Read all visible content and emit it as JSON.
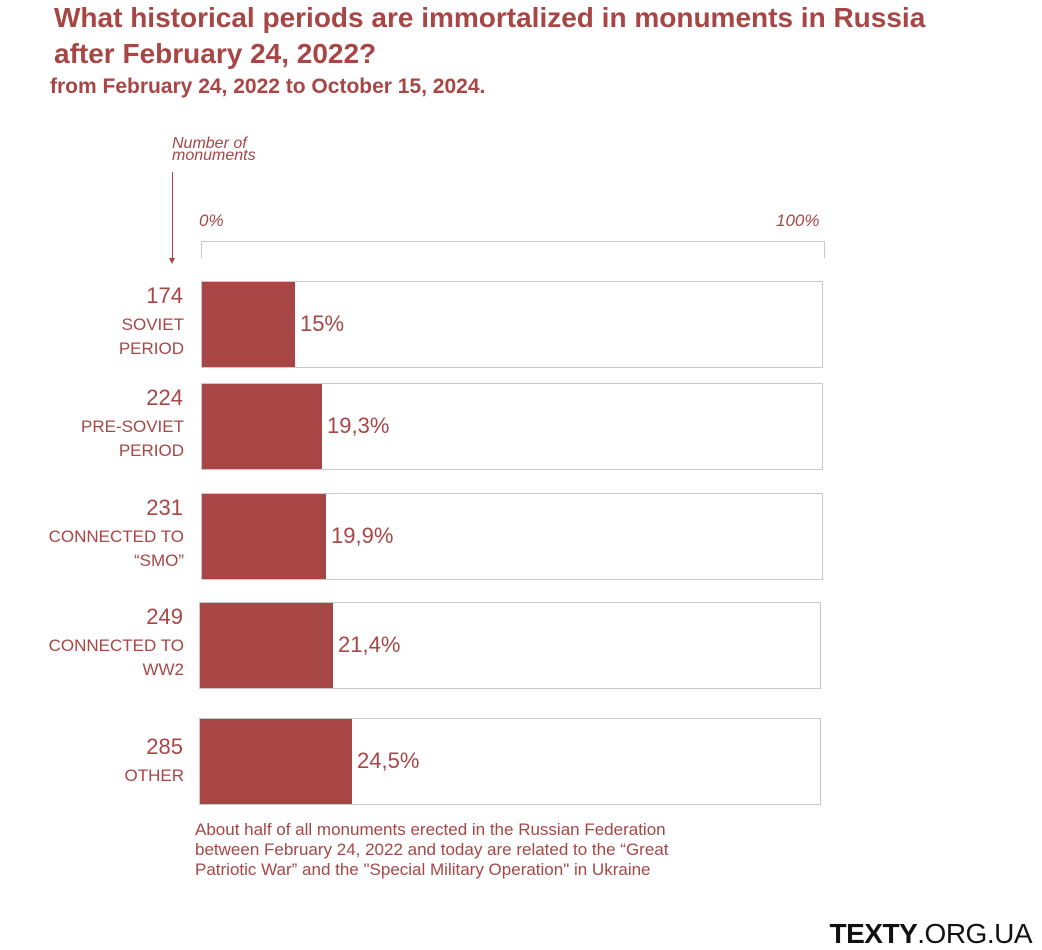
{
  "title": "What historical periods are immortalized in monuments in Russia after February 24, 2022?",
  "subtitle": "from February 24, 2022 to October 15, 2024.",
  "axis_label": "Number of monuments",
  "scale_min_label": "0%",
  "scale_max_label": "100%",
  "note": "About half of all monuments erected in the Russian Federation between February 24, 2022 and today are related to the “Great Patriotic War” and the \"Special Military Operation\" in Ukraine",
  "logo": {
    "bold": "TEXTY",
    "rest": ".ORG.UA"
  },
  "colors": {
    "bar": "#a84646",
    "text": "#a84646",
    "frame": "#c9c9c9"
  },
  "chart_data": {
    "type": "bar",
    "orientation": "horizontal",
    "xlim": [
      0,
      100
    ],
    "categories": [
      {
        "count": "174",
        "lines": [
          "SOVIET",
          "PERIOD"
        ],
        "value": 15,
        "label": "15%"
      },
      {
        "count": "224",
        "lines": [
          "PRE-SOVIET",
          "PERIOD"
        ],
        "value": 19.3,
        "label": "19,3%"
      },
      {
        "count": "231",
        "lines": [
          "CONNECTED TO",
          "“SMO”"
        ],
        "value": 19.9,
        "label": "19,9%"
      },
      {
        "count": "249",
        "lines": [
          "CONNECTED TO",
          "WW2"
        ],
        "value": 21.4,
        "label": "21,4%"
      },
      {
        "count": "285",
        "lines": [
          "OTHER"
        ],
        "value": 24.5,
        "label": "24,5%"
      }
    ]
  }
}
